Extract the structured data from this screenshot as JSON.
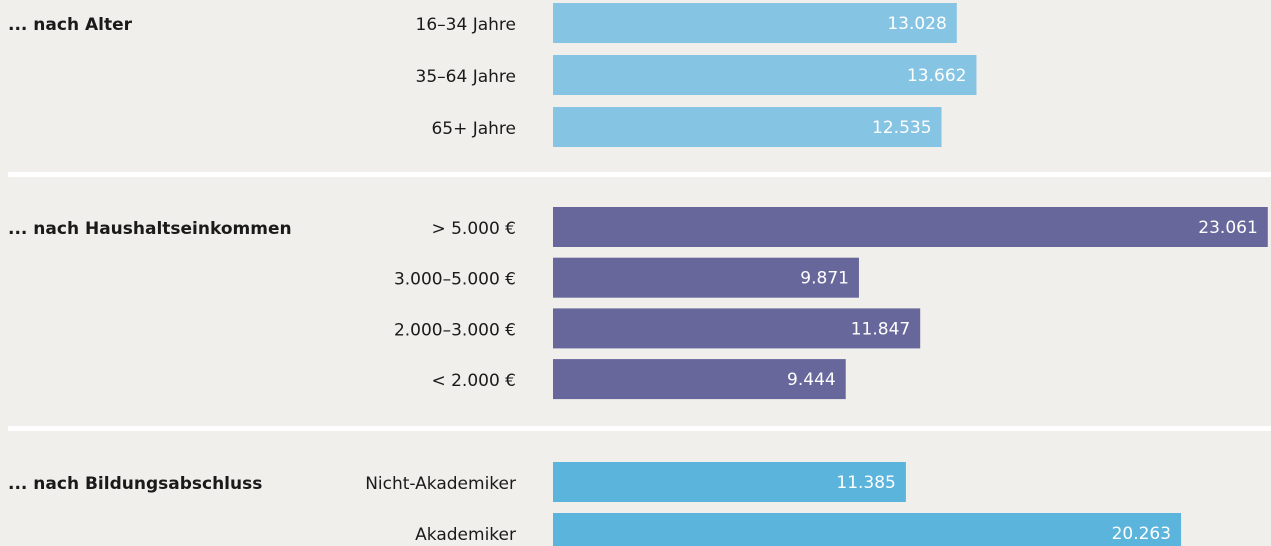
{
  "chart_data": [
    {
      "type": "bar",
      "title": "... nach Alter",
      "categories": [
        "16–34 Jahre",
        "35–64 Jahre",
        "65+ Jahre"
      ],
      "values": [
        13028,
        13662,
        12535
      ],
      "value_labels": [
        "13.028",
        "13.662",
        "12.535"
      ],
      "color": "#86c4e4",
      "xlim": [
        0,
        23100
      ]
    },
    {
      "type": "bar",
      "title": "... nach Haushaltseinkommen",
      "categories": [
        "> 5.000 €",
        "3.000–5.000 €",
        "2.000–3.000 €",
        "< 2.000 €"
      ],
      "values": [
        23061,
        9871,
        11847,
        9444
      ],
      "value_labels": [
        "23.061",
        "9.871",
        "11.847",
        "9.444"
      ],
      "color": "#67679c",
      "xlim": [
        0,
        23100
      ]
    },
    {
      "type": "bar",
      "title": "... nach Bildungsabschluss",
      "categories": [
        "Nicht-Akademiker",
        "Akademiker"
      ],
      "values": [
        11385,
        20263
      ],
      "value_labels": [
        "11.385",
        "20.263"
      ],
      "color": "#5ab4dc",
      "xlim": [
        0,
        23100
      ]
    }
  ]
}
